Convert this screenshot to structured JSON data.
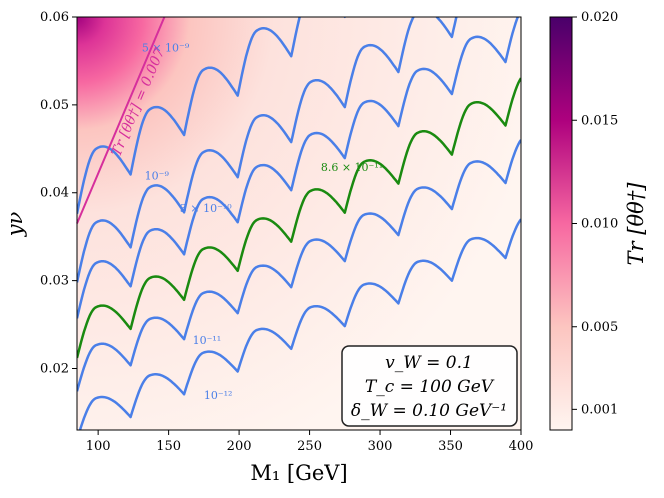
{
  "chart_data": {
    "type": "contour",
    "xlabel": "M₁ [GeV]",
    "ylabel": "yν",
    "xlim": [
      85,
      400
    ],
    "ylim": [
      0.013,
      0.06
    ],
    "x_ticks": [
      100,
      150,
      200,
      250,
      300,
      350,
      400
    ],
    "x_tick_labels": [
      "100",
      "150",
      "200",
      "250",
      "300",
      "350",
      "400"
    ],
    "y_ticks": [
      0.02,
      0.03,
      0.04,
      0.05,
      0.06
    ],
    "y_tick_labels": [
      "0.02",
      "0.03",
      "0.04",
      "0.05",
      "0.06"
    ],
    "colorbar": {
      "label": "Tr [θθ†]",
      "range": [
        0.0,
        0.02
      ],
      "ticks": [
        0.001,
        0.005,
        0.01,
        0.015,
        0.02
      ],
      "tick_labels": [
        "0.001",
        "0.005",
        "0.010",
        "0.015",
        "0.020"
      ],
      "colors": [
        "#fff5f0",
        "#fcc5c0",
        "#f768a1",
        "#ae017e",
        "#49006a"
      ]
    },
    "contours": [
      {
        "name": "10^-12 band",
        "label": "10⁻¹²",
        "color": "#4a7fe8",
        "label_x": 175,
        "label_y": 0.0165,
        "start_x": 85,
        "start_y": 0.0138,
        "slope_per_100GeV": 0.0068,
        "saw_period": 38,
        "saw_amplitude": 0.0038
      },
      {
        "name": "10^-11 band",
        "label": "10⁻¹¹",
        "color": "#4a7fe8",
        "label_x": 167,
        "label_y": 0.0228,
        "start_x": 85,
        "start_y": 0.0195,
        "slope_per_100GeV": 0.0078,
        "saw_period": 38,
        "saw_amplitude": 0.0042
      },
      {
        "name": "8.6x10^-11",
        "label": "8.6 × 10⁻¹¹",
        "color": "#1a8a10",
        "label_x": 258,
        "label_y": 0.0425,
        "start_x": 85,
        "start_y": 0.0235,
        "slope_per_100GeV": 0.0087,
        "saw_period": 38,
        "saw_amplitude": 0.0046
      },
      {
        "name": "3x10^-10",
        "label": "3 × 10⁻¹⁰",
        "color": "#4a7fe8",
        "label_x": 158,
        "label_y": 0.0378,
        "start_x": 85,
        "start_y": 0.0282,
        "slope_per_100GeV": 0.0096,
        "saw_period": 38,
        "saw_amplitude": 0.005
      },
      {
        "name": "10^-9",
        "label": "10⁻⁹",
        "color": "#4a7fe8",
        "label_x": 133,
        "label_y": 0.0415,
        "start_x": 85,
        "start_y": 0.0325,
        "slope_per_100GeV": 0.0105,
        "saw_period": 38,
        "saw_amplitude": 0.0054
      },
      {
        "name": "5x10^-9",
        "label": "5 × 10⁻⁹",
        "color": "#4a7fe8",
        "label_x": 131,
        "label_y": 0.0561,
        "start_x": 85,
        "start_y": 0.0405,
        "slope_per_100GeV": 0.0118,
        "saw_period": 38,
        "saw_amplitude": 0.0058
      }
    ],
    "boundary_line": {
      "label": "Tr [θθ†] = 0.007",
      "color": "#d62f9c",
      "from": [
        85,
        0.0365
      ],
      "to": [
        147,
        0.06
      ]
    },
    "legend_box": {
      "position": "bottom-right",
      "lines": [
        "v_W = 0.1",
        "T_c = 100 GeV",
        "δ_W = 0.10 GeV⁻¹"
      ]
    }
  }
}
